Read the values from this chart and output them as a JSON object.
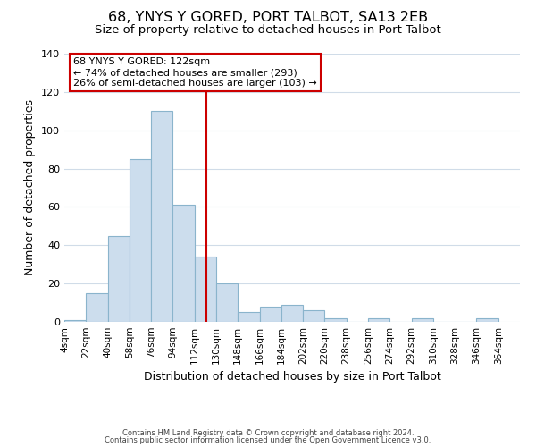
{
  "title": "68, YNYS Y GORED, PORT TALBOT, SA13 2EB",
  "subtitle": "Size of property relative to detached houses in Port Talbot",
  "xlabel": "Distribution of detached houses by size in Port Talbot",
  "ylabel": "Number of detached properties",
  "bin_edges": [
    4,
    22,
    40,
    58,
    76,
    94,
    112,
    130,
    148,
    166,
    184,
    202,
    220,
    238,
    256,
    274,
    292,
    310,
    328,
    346,
    364
  ],
  "bar_heights": [
    1,
    15,
    45,
    85,
    110,
    61,
    34,
    20,
    5,
    8,
    9,
    6,
    2,
    0,
    2,
    0,
    2,
    0,
    0,
    2
  ],
  "bar_color": "#ccdded",
  "bar_edgecolor": "#8ab4cc",
  "vline_x": 122,
  "vline_color": "#cc0000",
  "ylim": [
    0,
    140
  ],
  "yticks": [
    0,
    20,
    40,
    60,
    80,
    100,
    120,
    140
  ],
  "annotation_line1": "68 YNYS Y GORED: 122sqm",
  "annotation_line2": "← 74% of detached houses are smaller (293)",
  "annotation_line3": "26% of semi-detached houses are larger (103) →",
  "annotation_box_facecolor": "#ffffff",
  "annotation_box_edgecolor": "#cc0000",
  "footer_line1": "Contains HM Land Registry data © Crown copyright and database right 2024.",
  "footer_line2": "Contains public sector information licensed under the Open Government Licence v3.0.",
  "title_fontsize": 11.5,
  "subtitle_fontsize": 9.5,
  "tick_label_fontsize": 7.5,
  "ylabel_fontsize": 9,
  "xlabel_fontsize": 9,
  "annotation_fontsize": 8,
  "footer_fontsize": 6,
  "background_color": "#ffffff",
  "grid_color": "#d0dce8",
  "x_tick_labels": [
    "4sqm",
    "22sqm",
    "40sqm",
    "58sqm",
    "76sqm",
    "94sqm",
    "112sqm",
    "130sqm",
    "148sqm",
    "166sqm",
    "184sqm",
    "202sqm",
    "220sqm",
    "238sqm",
    "256sqm",
    "274sqm",
    "292sqm",
    "310sqm",
    "328sqm",
    "346sqm",
    "364sqm"
  ]
}
